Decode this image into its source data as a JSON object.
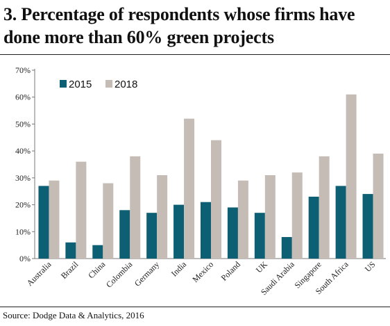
{
  "title": "3. Percentage of respondents whose firms have done more than 60% green projects",
  "source": "Source: Dodge Data & Analytics, 2016",
  "colors": {
    "s2015": "#0d5f73",
    "s2018": "#c5bcb5",
    "axis": "#777777"
  },
  "chart_data": {
    "type": "bar",
    "title": "3. Percentage of respondents whose firms have done more than 60% green projects",
    "xlabel": "",
    "ylabel": "",
    "ylim": [
      0,
      70
    ],
    "yticks": [
      "0%",
      "10%",
      "20%",
      "30%",
      "40%",
      "50%",
      "60%",
      "70%"
    ],
    "grid": false,
    "legend_position": "top-left",
    "categories": [
      "Australia",
      "Brazil",
      "China",
      "Colombia",
      "Germany",
      "India",
      "Mexico",
      "Poland",
      "UK",
      "Saudi Arabia",
      "Singapore",
      "South Africa",
      "US"
    ],
    "series": [
      {
        "name": "2015",
        "values": [
          27,
          6,
          5,
          18,
          17,
          20,
          21,
          19,
          17,
          8,
          23,
          27,
          24
        ]
      },
      {
        "name": "2018",
        "values": [
          29,
          36,
          28,
          38,
          31,
          52,
          44,
          29,
          31,
          32,
          38,
          61,
          39
        ]
      }
    ]
  }
}
